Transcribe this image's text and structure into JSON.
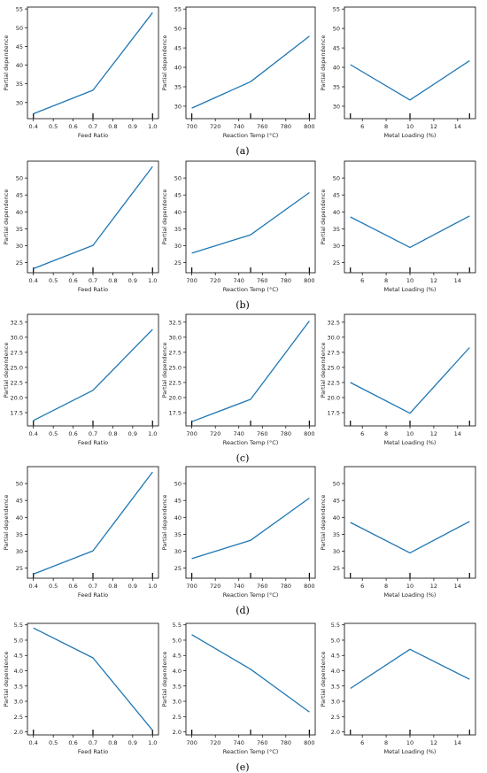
{
  "y_axis_label": "Partial dependence",
  "line_color": "#1f77b4",
  "chart_data": [
    {
      "panel": "(a)",
      "type": "line",
      "subplots": [
        {
          "xlabel": "Feed Ratio",
          "x": [
            0.4,
            0.7,
            1.0
          ],
          "y": [
            27.0,
            33.3,
            54.0
          ],
          "xlim": [
            0.37,
            1.03
          ],
          "ylim": [
            25.7,
            55.5
          ],
          "xticks": [
            0.4,
            0.5,
            0.6,
            0.7,
            0.8,
            0.9,
            1.0
          ],
          "xtick_labels": [
            "0.4",
            "0.5",
            "0.6",
            "0.7",
            "0.8",
            "0.9",
            "1.0"
          ],
          "yticks": [
            30,
            35,
            40,
            45,
            50,
            55
          ],
          "ytick_labels": [
            "30",
            "35",
            "40",
            "45",
            "50",
            "55"
          ],
          "rug": [
            0.4,
            0.7,
            1.0
          ]
        },
        {
          "xlabel": "Reaction Temp (°C)",
          "x": [
            700,
            750,
            800
          ],
          "y": [
            29.5,
            36.3,
            48.0
          ],
          "xlim": [
            695,
            805
          ],
          "ylim": [
            26.8,
            55.5
          ],
          "xticks": [
            700,
            720,
            740,
            760,
            780,
            800
          ],
          "xtick_labels": [
            "700",
            "720",
            "740",
            "760",
            "780",
            "800"
          ],
          "yticks": [
            30,
            35,
            40,
            45,
            50,
            55
          ],
          "ytick_labels": [
            "30",
            "35",
            "40",
            "45",
            "50",
            "55"
          ],
          "rug": [
            700,
            750,
            800
          ]
        },
        {
          "xlabel": "Metal Loading (%)",
          "x": [
            5,
            10,
            15
          ],
          "y": [
            40.7,
            31.6,
            41.7
          ],
          "xlim": [
            4.5,
            15.5
          ],
          "ylim": [
            26.8,
            55.5
          ],
          "xticks": [
            6,
            8,
            10,
            12,
            14
          ],
          "xtick_labels": [
            "6",
            "8",
            "10",
            "12",
            "14"
          ],
          "yticks": [
            30,
            35,
            40,
            45,
            50,
            55
          ],
          "ytick_labels": [
            "30",
            "35",
            "40",
            "45",
            "50",
            "55"
          ],
          "rug": [
            5,
            10,
            15
          ]
        }
      ]
    },
    {
      "panel": "(b)",
      "type": "line",
      "subplots": [
        {
          "xlabel": "Feed Ratio",
          "x": [
            0.4,
            0.7,
            1.0
          ],
          "y": [
            23.2,
            30.1,
            53.4
          ],
          "xlim": [
            0.37,
            1.03
          ],
          "ylim": [
            22.0,
            55.0
          ],
          "xticks": [
            0.4,
            0.5,
            0.6,
            0.7,
            0.8,
            0.9,
            1.0
          ],
          "xtick_labels": [
            "0.4",
            "0.5",
            "0.6",
            "0.7",
            "0.8",
            "0.9",
            "1.0"
          ],
          "yticks": [
            25,
            30,
            35,
            40,
            45,
            50
          ],
          "ytick_labels": [
            "25",
            "30",
            "35",
            "40",
            "45",
            "50"
          ],
          "rug": [
            0.4,
            0.7,
            1.0
          ]
        },
        {
          "xlabel": "Reaction Temp (°C)",
          "x": [
            700,
            750,
            800
          ],
          "y": [
            27.8,
            33.2,
            45.7
          ],
          "xlim": [
            695,
            805
          ],
          "ylim": [
            22.0,
            55.0
          ],
          "xticks": [
            700,
            720,
            740,
            760,
            780,
            800
          ],
          "xtick_labels": [
            "700",
            "720",
            "740",
            "760",
            "780",
            "800"
          ],
          "yticks": [
            25,
            30,
            35,
            40,
            45,
            50
          ],
          "ytick_labels": [
            "25",
            "30",
            "35",
            "40",
            "45",
            "50"
          ],
          "rug": [
            700,
            750,
            800
          ]
        },
        {
          "xlabel": "Metal Loading (%)",
          "x": [
            5,
            10,
            15
          ],
          "y": [
            38.5,
            29.5,
            38.8
          ],
          "xlim": [
            4.5,
            15.5
          ],
          "ylim": [
            22.0,
            55.0
          ],
          "xticks": [
            6,
            8,
            10,
            12,
            14
          ],
          "xtick_labels": [
            "6",
            "8",
            "10",
            "12",
            "14"
          ],
          "yticks": [
            25,
            30,
            35,
            40,
            45,
            50
          ],
          "ytick_labels": [
            "25",
            "30",
            "35",
            "40",
            "45",
            "50"
          ],
          "rug": [
            5,
            10,
            15
          ]
        }
      ]
    },
    {
      "panel": "(c)",
      "type": "line",
      "subplots": [
        {
          "xlabel": "Feed Ratio",
          "x": [
            0.4,
            0.7,
            1.0
          ],
          "y": [
            16.2,
            21.2,
            31.3
          ],
          "xlim": [
            0.37,
            1.03
          ],
          "ylim": [
            15.3,
            33.8
          ],
          "xticks": [
            0.4,
            0.5,
            0.6,
            0.7,
            0.8,
            0.9,
            1.0
          ],
          "xtick_labels": [
            "0.4",
            "0.5",
            "0.6",
            "0.7",
            "0.8",
            "0.9",
            "1.0"
          ],
          "yticks": [
            17.5,
            20.0,
            22.5,
            25.0,
            27.5,
            30.0,
            32.5
          ],
          "ytick_labels": [
            "17.5",
            "20.0",
            "22.5",
            "25.0",
            "27.5",
            "30.0",
            "32.5"
          ],
          "rug": [
            0.4,
            0.7,
            1.0
          ]
        },
        {
          "xlabel": "Reaction Temp (°C)",
          "x": [
            700,
            750,
            800
          ],
          "y": [
            16.0,
            19.7,
            32.7
          ],
          "xlim": [
            695,
            805
          ],
          "ylim": [
            15.3,
            33.8
          ],
          "xticks": [
            700,
            720,
            740,
            760,
            780,
            800
          ],
          "xtick_labels": [
            "700",
            "720",
            "740",
            "760",
            "780",
            "800"
          ],
          "yticks": [
            17.5,
            20.0,
            22.5,
            25.0,
            27.5,
            30.0,
            32.5
          ],
          "ytick_labels": [
            "17.5",
            "20.0",
            "22.5",
            "25.0",
            "27.5",
            "30.0",
            "32.5"
          ],
          "rug": [
            700,
            750,
            800
          ]
        },
        {
          "xlabel": "Metal Loading (%)",
          "x": [
            5,
            10,
            15
          ],
          "y": [
            22.5,
            17.4,
            28.3
          ],
          "xlim": [
            4.5,
            15.5
          ],
          "ylim": [
            15.3,
            33.8
          ],
          "xticks": [
            6,
            8,
            10,
            12,
            14
          ],
          "xtick_labels": [
            "6",
            "8",
            "10",
            "12",
            "14"
          ],
          "yticks": [
            17.5,
            20.0,
            22.5,
            25.0,
            27.5,
            30.0,
            32.5
          ],
          "ytick_labels": [
            "17.5",
            "20.0",
            "22.5",
            "25.0",
            "27.5",
            "30.0",
            "32.5"
          ],
          "rug": [
            5,
            10,
            15
          ]
        }
      ]
    },
    {
      "panel": "(d)",
      "type": "line",
      "subplots": [
        {
          "xlabel": "Feed Ratio",
          "x": [
            0.4,
            0.7,
            1.0
          ],
          "y": [
            23.2,
            30.1,
            53.4
          ],
          "xlim": [
            0.37,
            1.03
          ],
          "ylim": [
            22.0,
            55.0
          ],
          "xticks": [
            0.4,
            0.5,
            0.6,
            0.7,
            0.8,
            0.9,
            1.0
          ],
          "xtick_labels": [
            "0.4",
            "0.5",
            "0.6",
            "0.7",
            "0.8",
            "0.9",
            "1.0"
          ],
          "yticks": [
            25,
            30,
            35,
            40,
            45,
            50
          ],
          "ytick_labels": [
            "25",
            "30",
            "35",
            "40",
            "45",
            "50"
          ],
          "rug": [
            0.4,
            0.7,
            1.0
          ]
        },
        {
          "xlabel": "Reaction Temp (°C)",
          "x": [
            700,
            750,
            800
          ],
          "y": [
            27.8,
            33.2,
            45.7
          ],
          "xlim": [
            695,
            805
          ],
          "ylim": [
            22.0,
            55.0
          ],
          "xticks": [
            700,
            720,
            740,
            760,
            780,
            800
          ],
          "xtick_labels": [
            "700",
            "720",
            "740",
            "760",
            "780",
            "800"
          ],
          "yticks": [
            25,
            30,
            35,
            40,
            45,
            50
          ],
          "ytick_labels": [
            "25",
            "30",
            "35",
            "40",
            "45",
            "50"
          ],
          "rug": [
            700,
            750,
            800
          ]
        },
        {
          "xlabel": "Metal Loading (%)",
          "x": [
            5,
            10,
            15
          ],
          "y": [
            38.5,
            29.5,
            38.8
          ],
          "xlim": [
            4.5,
            15.5
          ],
          "ylim": [
            22.0,
            55.0
          ],
          "xticks": [
            6,
            8,
            10,
            12,
            14
          ],
          "xtick_labels": [
            "6",
            "8",
            "10",
            "12",
            "14"
          ],
          "yticks": [
            25,
            30,
            35,
            40,
            45,
            50
          ],
          "ytick_labels": [
            "25",
            "30",
            "35",
            "40",
            "45",
            "50"
          ],
          "rug": [
            5,
            10,
            15
          ]
        }
      ]
    },
    {
      "panel": "(e)",
      "type": "line",
      "subplots": [
        {
          "xlabel": "Feed Ratio",
          "x": [
            0.4,
            0.7,
            1.0
          ],
          "y": [
            5.4,
            4.42,
            2.05
          ],
          "xlim": [
            0.37,
            1.03
          ],
          "ylim": [
            1.9,
            5.55
          ],
          "xticks": [
            0.4,
            0.5,
            0.6,
            0.7,
            0.8,
            0.9,
            1.0
          ],
          "xtick_labels": [
            "0.4",
            "0.5",
            "0.6",
            "0.7",
            "0.8",
            "0.9",
            "1.0"
          ],
          "yticks": [
            2.0,
            2.5,
            3.0,
            3.5,
            4.0,
            4.5,
            5.0,
            5.5
          ],
          "ytick_labels": [
            "2.0",
            "2.5",
            "3.0",
            "3.5",
            "4.0",
            "4.5",
            "5.0",
            "5.5"
          ],
          "rug": [
            0.4,
            0.7,
            1.0
          ]
        },
        {
          "xlabel": "Reaction Temp (°C)",
          "x": [
            700,
            750,
            800
          ],
          "y": [
            5.18,
            4.05,
            2.65
          ],
          "xlim": [
            695,
            805
          ],
          "ylim": [
            1.9,
            5.55
          ],
          "xticks": [
            700,
            720,
            740,
            760,
            780,
            800
          ],
          "xtick_labels": [
            "700",
            "720",
            "740",
            "760",
            "780",
            "800"
          ],
          "yticks": [
            2.0,
            2.5,
            3.0,
            3.5,
            4.0,
            4.5,
            5.0,
            5.5
          ],
          "ytick_labels": [
            "2.0",
            "2.5",
            "3.0",
            "3.5",
            "4.0",
            "4.5",
            "5.0",
            "5.5"
          ],
          "rug": [
            700,
            750,
            800
          ]
        },
        {
          "xlabel": "Metal Loading (%)",
          "x": [
            5,
            10,
            15
          ],
          "y": [
            3.42,
            4.7,
            3.72
          ],
          "xlim": [
            4.5,
            15.5
          ],
          "ylim": [
            1.9,
            5.55
          ],
          "xticks": [
            6,
            8,
            10,
            12,
            14
          ],
          "xtick_labels": [
            "6",
            "8",
            "10",
            "12",
            "14"
          ],
          "yticks": [
            2.0,
            2.5,
            3.0,
            3.5,
            4.0,
            4.5,
            5.0,
            5.5
          ],
          "ytick_labels": [
            "2.0",
            "2.5",
            "3.0",
            "3.5",
            "4.0",
            "4.5",
            "5.0",
            "5.5"
          ],
          "rug": [
            5,
            10,
            15
          ]
        }
      ]
    }
  ]
}
